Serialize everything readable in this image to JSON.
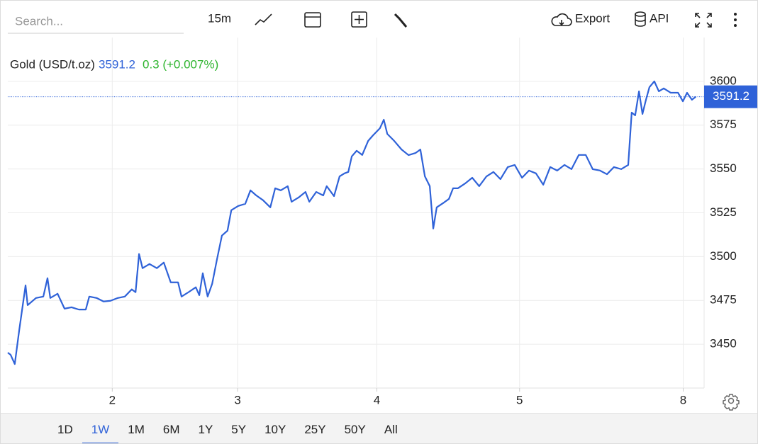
{
  "toolbar": {
    "search_placeholder": "Search...",
    "interval": "15m",
    "export": "Export",
    "api": "API"
  },
  "legend": {
    "change": "0.3 (+0.007%)"
  },
  "chart_data": {
    "type": "line",
    "x": [
      0,
      0.8,
      2,
      3.3,
      5.1,
      5.7,
      8.1,
      10.2,
      11.4,
      12.2,
      14.3,
      16.3,
      18.3,
      20.4,
      22.4,
      23.4,
      25.5,
      27.5,
      29.5,
      31.6,
      33.6,
      35.6,
      36.7,
      37.7,
      38.7,
      40.7,
      42.8,
      44.8,
      46.8,
      48.9,
      49.9,
      51.9,
      54,
      55,
      56,
      57.4,
      58.7,
      60.1,
      61.5,
      63.1,
      64.2,
      66.2,
      68.2,
      69.7,
      71.3,
      73.3,
      75.4,
      76.8,
      78.4,
      80.4,
      81.5,
      83.5,
      85.5,
      86.6,
      88.6,
      90.6,
      91.6,
      93.7,
      95.3,
      96.7,
      97.8,
      98.8,
      100.2,
      101.8,
      103.5,
      104.9,
      106.9,
      108,
      109,
      111,
      113.1,
      115.1,
      117.1,
      118.5,
      119.8,
      121.2,
      122.2,
      123.2,
      125.3,
      126.7,
      127.9,
      129.3,
      131.4,
      133.4,
      135.4,
      137.5,
      139.5,
      141.5,
      143.6,
      145.6,
      147.7,
      149.7,
      151.7,
      153.8,
      155.8,
      157.8,
      159.9,
      161.9,
      164,
      166,
      168,
      170.1,
      172.1,
      174.1,
      176.2,
      178.2,
      179.2,
      180.2,
      181.3,
      182.3,
      183.3,
      184.3,
      185.7,
      187,
      188.4,
      190.4,
      192.5,
      193.9,
      195.1,
      196.5,
      197.6
    ],
    "series": [
      {
        "name": "Gold (USD/t.oz)",
        "color": "#2f62d8",
        "values": [
          3445.2,
          3444,
          3438.7,
          3458.3,
          3483.6,
          3472.3,
          3476.4,
          3477.2,
          3487.7,
          3476.4,
          3478.8,
          3470.3,
          3471.1,
          3469.8,
          3469.8,
          3477.2,
          3476.4,
          3474.4,
          3474.8,
          3476.4,
          3477.2,
          3481.3,
          3479.7,
          3501.5,
          3493.4,
          3495.8,
          3493.4,
          3496.6,
          3485.3,
          3485.3,
          3477.2,
          3479.7,
          3482.5,
          3478,
          3490.5,
          3477.2,
          3484.5,
          3498.6,
          3512,
          3514.8,
          3526.5,
          3528.9,
          3530.1,
          3537.8,
          3535,
          3532.2,
          3528.1,
          3539,
          3537.8,
          3540.2,
          3531.3,
          3533.7,
          3536.9,
          3531.3,
          3536.9,
          3534.9,
          3540.2,
          3534.5,
          3545.8,
          3547.5,
          3548.3,
          3557.2,
          3560.4,
          3558,
          3566,
          3569.2,
          3573.3,
          3578.1,
          3570,
          3566,
          3561.1,
          3557.9,
          3559.1,
          3561.1,
          3545.8,
          3540.2,
          3516,
          3528.1,
          3530.9,
          3532.9,
          3539,
          3539,
          3541.8,
          3545,
          3540.2,
          3545.8,
          3548.3,
          3544.2,
          3551.1,
          3552.3,
          3545,
          3549.1,
          3547.5,
          3541,
          3551.1,
          3549.1,
          3552.3,
          3549.9,
          3558,
          3558,
          3549.9,
          3549.1,
          3547,
          3551.1,
          3549.9,
          3552.3,
          3582.2,
          3580.6,
          3594.3,
          3581.4,
          3589.5,
          3596.7,
          3600,
          3594.3,
          3596,
          3593.5,
          3593.5,
          3588.6,
          3593.5,
          3589.5,
          3591.2
        ]
      }
    ],
    "last_value": 3591.2,
    "xlim": [
      0,
      200
    ],
    "xticks": [
      {
        "value": 30,
        "label": "2"
      },
      {
        "value": 66,
        "label": "3"
      },
      {
        "value": 106,
        "label": "4"
      },
      {
        "value": 147,
        "label": "5"
      },
      {
        "value": 194,
        "label": "8"
      }
    ],
    "ylim": [
      3425,
      3625
    ],
    "yticks": [
      3450,
      3475,
      3500,
      3525,
      3550,
      3575,
      3600
    ],
    "grid": true
  },
  "ranges": {
    "options": [
      "1D",
      "1W",
      "1M",
      "6M",
      "1Y",
      "5Y",
      "10Y",
      "25Y",
      "50Y",
      "All"
    ],
    "selected": 1
  }
}
